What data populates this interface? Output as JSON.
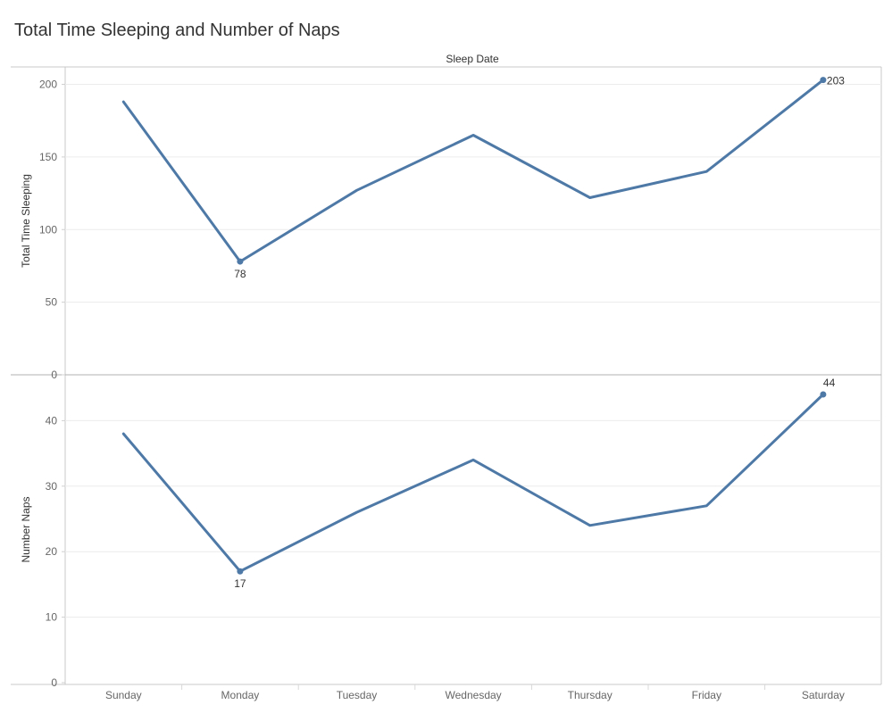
{
  "title": "Total Time Sleeping and Number of Naps",
  "chart_data": [
    {
      "type": "line",
      "column_header": "Sleep Date",
      "categories": [
        "Sunday",
        "Monday",
        "Tuesday",
        "Wednesday",
        "Thursday",
        "Friday",
        "Saturday"
      ],
      "ylabel": "Total Time Sleeping",
      "ylim": [
        0,
        212
      ],
      "yticks": [
        0,
        50,
        100,
        150,
        200
      ],
      "values": [
        188,
        78,
        127,
        165,
        122,
        140,
        203
      ],
      "labeled_points": [
        {
          "category": "Monday",
          "label": "78"
        },
        {
          "category": "Saturday",
          "label": "203"
        }
      ],
      "line_color": "#4e79a7",
      "grid": true
    },
    {
      "type": "line",
      "categories": [
        "Sunday",
        "Monday",
        "Tuesday",
        "Wednesday",
        "Thursday",
        "Friday",
        "Saturday"
      ],
      "ylabel": "Number Naps",
      "ylim": [
        0,
        47
      ],
      "yticks": [
        0,
        10,
        20,
        30,
        40
      ],
      "values": [
        38,
        17,
        26,
        34,
        24,
        27,
        44
      ],
      "labeled_points": [
        {
          "category": "Monday",
          "label": "17"
        },
        {
          "category": "Saturday",
          "label": "44"
        }
      ],
      "line_color": "#4e79a7",
      "grid": true
    }
  ]
}
